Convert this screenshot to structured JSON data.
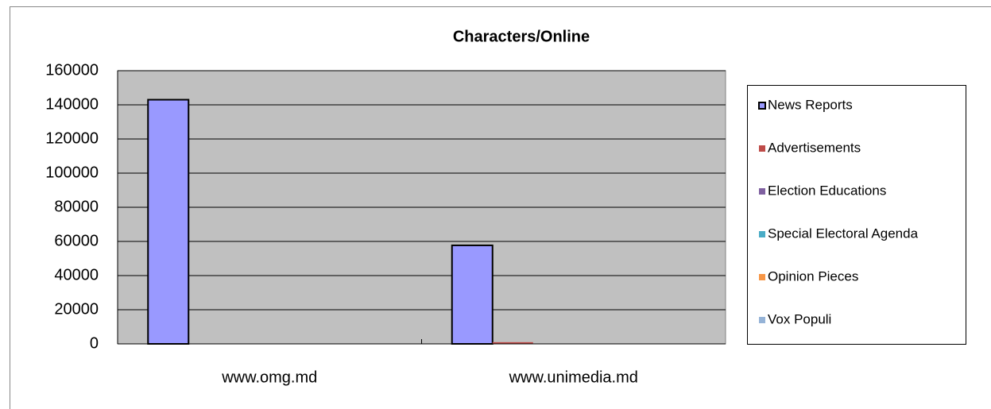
{
  "chart_data": {
    "type": "bar",
    "title": "Characters/Online",
    "categories": [
      "www.omg.md",
      "www.unimedia.md"
    ],
    "series": [
      {
        "name": "News Reports",
        "color": "#9999ff",
        "values": [
          143000,
          57700
        ]
      },
      {
        "name": "Advertisements",
        "color": "#be4b48",
        "values": [
          0,
          1000
        ]
      },
      {
        "name": "Election Educations",
        "color": "#7f60a0",
        "values": [
          0,
          0
        ]
      },
      {
        "name": "Special Electoral Agenda",
        "color": "#4aacc6",
        "values": [
          0,
          0
        ]
      },
      {
        "name": "Opinion Pieces",
        "color": "#f79646",
        "values": [
          0,
          0
        ]
      },
      {
        "name": "Vox Populi",
        "color": "#95b3d7",
        "values": [
          0,
          0
        ]
      }
    ],
    "ylim": [
      0,
      160000
    ],
    "yticks": [
      0,
      20000,
      40000,
      60000,
      80000,
      100000,
      120000,
      140000,
      160000
    ],
    "grid": true,
    "legend": "right"
  }
}
